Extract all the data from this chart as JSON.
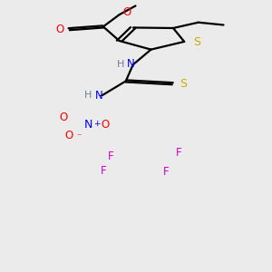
{
  "background_color": "#ebebeb",
  "colors": {
    "C": "#000000",
    "H": "#708090",
    "N": "#0000ff",
    "O": "#ff0000",
    "S": "#ccaa00",
    "F": "#cc00cc",
    "bond": "#000000"
  },
  "lw": 1.6,
  "fs": 8.5
}
